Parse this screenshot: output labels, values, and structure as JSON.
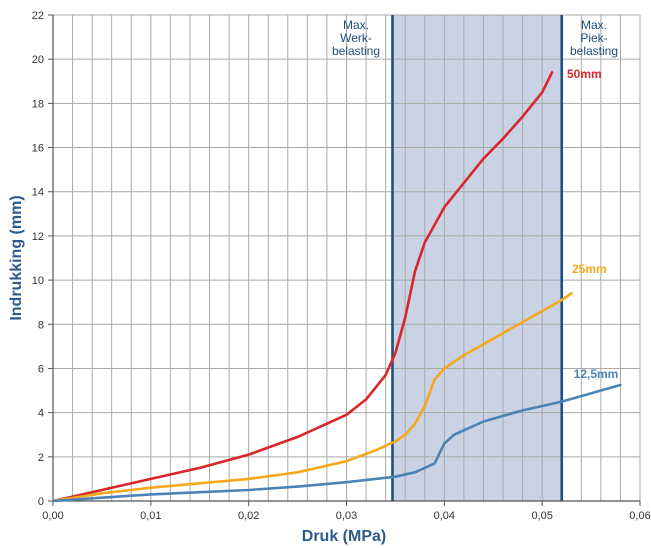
{
  "chart_data": {
    "type": "line",
    "xlabel": "Druk (MPa)",
    "ylabel": "Indrukking (mm)",
    "xlim": [
      0,
      0.06
    ],
    "ylim": [
      0,
      22
    ],
    "x_ticks": [
      "0,00",
      "0,01",
      "0,02",
      "0,03",
      "0,04",
      "0,05",
      "0,06"
    ],
    "y_ticks": [
      "0",
      "2",
      "4",
      "6",
      "8",
      "10",
      "12",
      "14",
      "16",
      "18",
      "20",
      "22"
    ],
    "grid": true,
    "shaded_region": [
      0.0347,
      0.052
    ],
    "annotations": [
      {
        "x": 0.0347,
        "lines": [
          "Max.",
          "Werk-",
          "belasting"
        ]
      },
      {
        "x": 0.052,
        "lines": [
          "Max.",
          "Piek-",
          "belasting"
        ]
      }
    ],
    "series": [
      {
        "name": "50mm",
        "color": "#d9262c",
        "x": [
          0,
          0.005,
          0.01,
          0.015,
          0.02,
          0.025,
          0.03,
          0.032,
          0.034,
          0.035,
          0.036,
          0.037,
          0.038,
          0.04,
          0.042,
          0.044,
          0.046,
          0.048,
          0.05,
          0.051
        ],
        "y": [
          0,
          0.5,
          1.0,
          1.5,
          2.1,
          2.9,
          3.9,
          4.6,
          5.7,
          6.7,
          8.3,
          10.4,
          11.7,
          13.3,
          14.4,
          15.5,
          16.4,
          17.4,
          18.5,
          19.4
        ]
      },
      {
        "name": "25mm",
        "color": "#f5a81c",
        "x": [
          0,
          0.005,
          0.01,
          0.015,
          0.02,
          0.025,
          0.03,
          0.033,
          0.035,
          0.036,
          0.037,
          0.038,
          0.039,
          0.04,
          0.042,
          0.044,
          0.046,
          0.048,
          0.05,
          0.052,
          0.053
        ],
        "y": [
          0,
          0.35,
          0.6,
          0.8,
          1.0,
          1.3,
          1.8,
          2.3,
          2.7,
          3.0,
          3.5,
          4.3,
          5.5,
          6.0,
          6.6,
          7.1,
          7.6,
          8.1,
          8.6,
          9.1,
          9.4
        ]
      },
      {
        "name": "12,5mm",
        "color": "#4a84b4",
        "x": [
          0,
          0.005,
          0.01,
          0.015,
          0.02,
          0.025,
          0.03,
          0.035,
          0.037,
          0.039,
          0.04,
          0.041,
          0.042,
          0.044,
          0.046,
          0.048,
          0.05,
          0.052,
          0.054,
          0.056,
          0.058
        ],
        "y": [
          0,
          0.15,
          0.3,
          0.4,
          0.5,
          0.65,
          0.85,
          1.1,
          1.3,
          1.7,
          2.6,
          3.0,
          3.2,
          3.6,
          3.85,
          4.1,
          4.3,
          4.5,
          4.75,
          5.0,
          5.25
        ]
      }
    ]
  }
}
